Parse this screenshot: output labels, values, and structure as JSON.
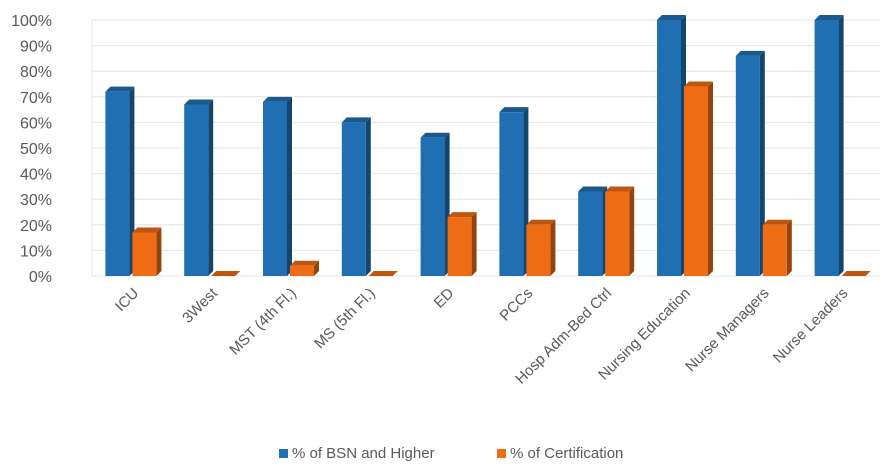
{
  "chart_data": {
    "type": "bar",
    "title": "",
    "xlabel": "",
    "ylabel": "",
    "ylim": [
      0,
      1
    ],
    "grid": true,
    "legend_position": "bottom",
    "y_tick_labels": [
      "0%",
      "10%",
      "20%",
      "30%",
      "40%",
      "50%",
      "60%",
      "70%",
      "80%",
      "90%",
      "100%"
    ],
    "categories": [
      "ICU",
      "3West",
      "MST (4th Fl.)",
      "MS (5th Fl.)",
      "ED",
      "PCCs",
      "Hosp Adm-Bed Ctrl",
      "Nursing Education",
      "Nurse Managers",
      "Nurse Leaders"
    ],
    "series": [
      {
        "name": "% of BSN and Higher",
        "color": "#1f6fb2",
        "values": [
          0.72,
          0.67,
          0.68,
          0.6,
          0.54,
          0.64,
          0.33,
          1.0,
          0.86,
          1.0
        ]
      },
      {
        "name": "% of Certification",
        "color": "#ee6c14",
        "values": [
          0.17,
          0.0,
          0.04,
          0.0,
          0.23,
          0.2,
          0.33,
          0.74,
          0.2,
          0.0
        ]
      }
    ]
  }
}
